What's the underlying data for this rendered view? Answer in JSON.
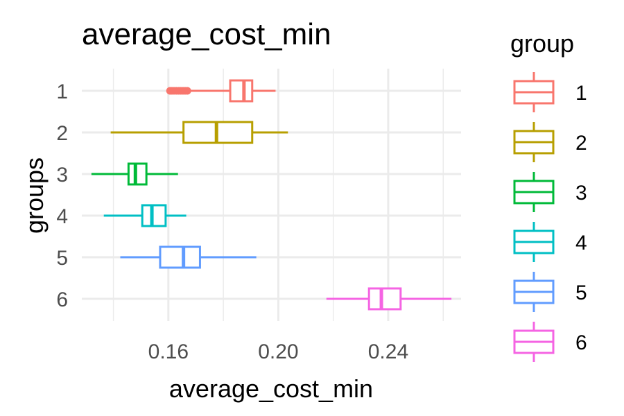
{
  "chart_data": {
    "type": "boxplot",
    "orientation": "horizontal",
    "title": "average_cost_min",
    "xlabel": "average_cost_min",
    "ylabel": "groups",
    "xlim": [
      0.1285,
      0.2665
    ],
    "x_ticks": [
      0.16,
      0.2,
      0.24
    ],
    "x_tick_labels": [
      "0.16",
      "0.20",
      "0.24"
    ],
    "categories": [
      "1",
      "2",
      "3",
      "4",
      "5",
      "6"
    ],
    "grid": true,
    "legend": {
      "title": "group",
      "position": "right"
    },
    "series": [
      {
        "name": "1",
        "color": "#F8766D",
        "whisker_low": 0.1605,
        "q1": 0.1825,
        "median": 0.1875,
        "q3": 0.1905,
        "whisker_high": 0.199,
        "outliers": [
          0.1606,
          0.1613,
          0.1621,
          0.1629,
          0.1637,
          0.1645,
          0.1653,
          0.1661,
          0.1669
        ]
      },
      {
        "name": "2",
        "color": "#B79F00",
        "whisker_low": 0.139,
        "q1": 0.1655,
        "median": 0.1775,
        "q3": 0.1905,
        "whisker_high": 0.2035,
        "outliers": []
      },
      {
        "name": "3",
        "color": "#00BA38",
        "whisker_low": 0.132,
        "q1": 0.1455,
        "median": 0.148,
        "q3": 0.152,
        "whisker_high": 0.1635,
        "outliers": []
      },
      {
        "name": "4",
        "color": "#00BFC4",
        "whisker_low": 0.1365,
        "q1": 0.1505,
        "median": 0.154,
        "q3": 0.159,
        "whisker_high": 0.1665,
        "outliers": []
      },
      {
        "name": "5",
        "color": "#619CFF",
        "whisker_low": 0.1425,
        "q1": 0.157,
        "median": 0.1655,
        "q3": 0.1715,
        "whisker_high": 0.192,
        "outliers": []
      },
      {
        "name": "6",
        "color": "#F564E3",
        "whisker_low": 0.2175,
        "q1": 0.233,
        "median": 0.2375,
        "q3": 0.2445,
        "whisker_high": 0.263,
        "outliers": []
      }
    ]
  }
}
